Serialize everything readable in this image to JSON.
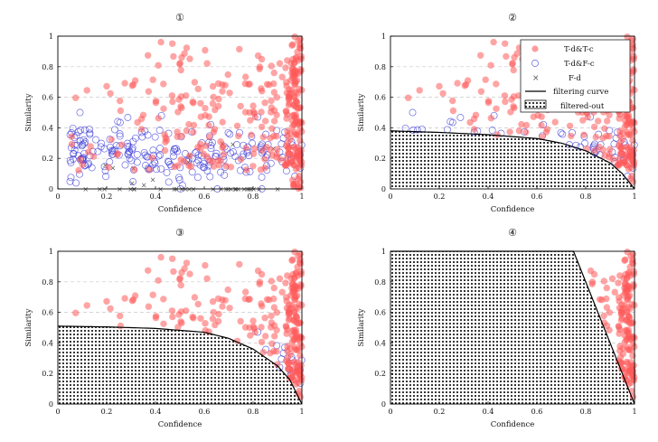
{
  "chart_data": [
    {
      "type": "scatter",
      "title": "①",
      "xlabel": "Confidence",
      "ylabel": "Similarity",
      "xlim": [
        0,
        1
      ],
      "ylim": [
        0,
        1
      ],
      "xticks": [
        "0",
        "0.2",
        "0.4",
        "0.6",
        "0.8",
        "1"
      ],
      "yticks": [
        "0",
        "0.2",
        "0.4",
        "0.6",
        "0.8",
        "1"
      ],
      "grid": "horizontal dashed at 0.2 intervals",
      "series": [
        "T-d&T-c",
        "T-d&F-c",
        "F-d"
      ],
      "filter_curve": null
    },
    {
      "type": "scatter",
      "title": "②",
      "xlabel": "Confidence",
      "ylabel": "Similarity",
      "xlim": [
        0,
        1
      ],
      "ylim": [
        0,
        1
      ],
      "xticks": [
        "0",
        "0.2",
        "0.4",
        "0.6",
        "0.8",
        "1"
      ],
      "yticks": [
        "0",
        "0.2",
        "0.4",
        "0.6",
        "0.8",
        "1"
      ],
      "grid": "horizontal dashed at 0.2 intervals",
      "series": [
        "T-d&T-c",
        "T-d&F-c"
      ],
      "legend": {
        "placement": "top-right",
        "entries": [
          "T-d&T-c",
          "T-d&F-c",
          "F-d",
          "filtering curve",
          "filtered-out"
        ]
      },
      "filter_curve": {
        "x": [
          0,
          0.2,
          0.4,
          0.6,
          0.7,
          0.8,
          0.9,
          0.95,
          1
        ],
        "y": [
          0.38,
          0.37,
          0.355,
          0.33,
          0.3,
          0.25,
          0.17,
          0.1,
          0
        ]
      }
    },
    {
      "type": "scatter",
      "title": "③",
      "xlabel": "Confidence",
      "ylabel": "Similarity",
      "xlim": [
        0,
        1
      ],
      "ylim": [
        0,
        1
      ],
      "xticks": [
        "0",
        "0.2",
        "0.4",
        "0.6",
        "0.8",
        "1"
      ],
      "yticks": [
        "0",
        "0.2",
        "0.4",
        "0.6",
        "0.8",
        "1"
      ],
      "grid": "horizontal dashed at 0.2 intervals",
      "series": [
        "T-d&T-c",
        "T-d&F-c"
      ],
      "filter_curve": {
        "x": [
          0,
          0.2,
          0.4,
          0.6,
          0.7,
          0.8,
          0.9,
          0.95,
          1
        ],
        "y": [
          0.51,
          0.505,
          0.495,
          0.47,
          0.43,
          0.36,
          0.25,
          0.16,
          0
        ]
      }
    },
    {
      "type": "scatter",
      "title": "④",
      "xlabel": "Confidence",
      "ylabel": "Similarity",
      "xlim": [
        0,
        1
      ],
      "ylim": [
        0,
        1
      ],
      "xticks": [
        "0",
        "0.2",
        "0.4",
        "0.6",
        "0.8",
        "1"
      ],
      "yticks": [
        "0",
        "0.2",
        "0.4",
        "0.6",
        "0.8",
        "1"
      ],
      "grid": "horizontal dashed at 0.2 intervals",
      "series": [
        "T-d&T-c"
      ],
      "filter_curve": {
        "x": [
          0,
          0.75,
          1
        ],
        "y": [
          1,
          1,
          0
        ]
      }
    }
  ],
  "legend_labels": {
    "tt": "T-d&T-c",
    "tf": "T-d&F-c",
    "fd": "F-d",
    "curve": "filtering curve",
    "filtered": "filtered-out"
  },
  "colors": {
    "tt_fill": "#ff5a5a",
    "tf_stroke": "#3a3ad8",
    "fd_stroke": "#555555",
    "curve": "#000000",
    "grid": "#c8c8c8"
  }
}
